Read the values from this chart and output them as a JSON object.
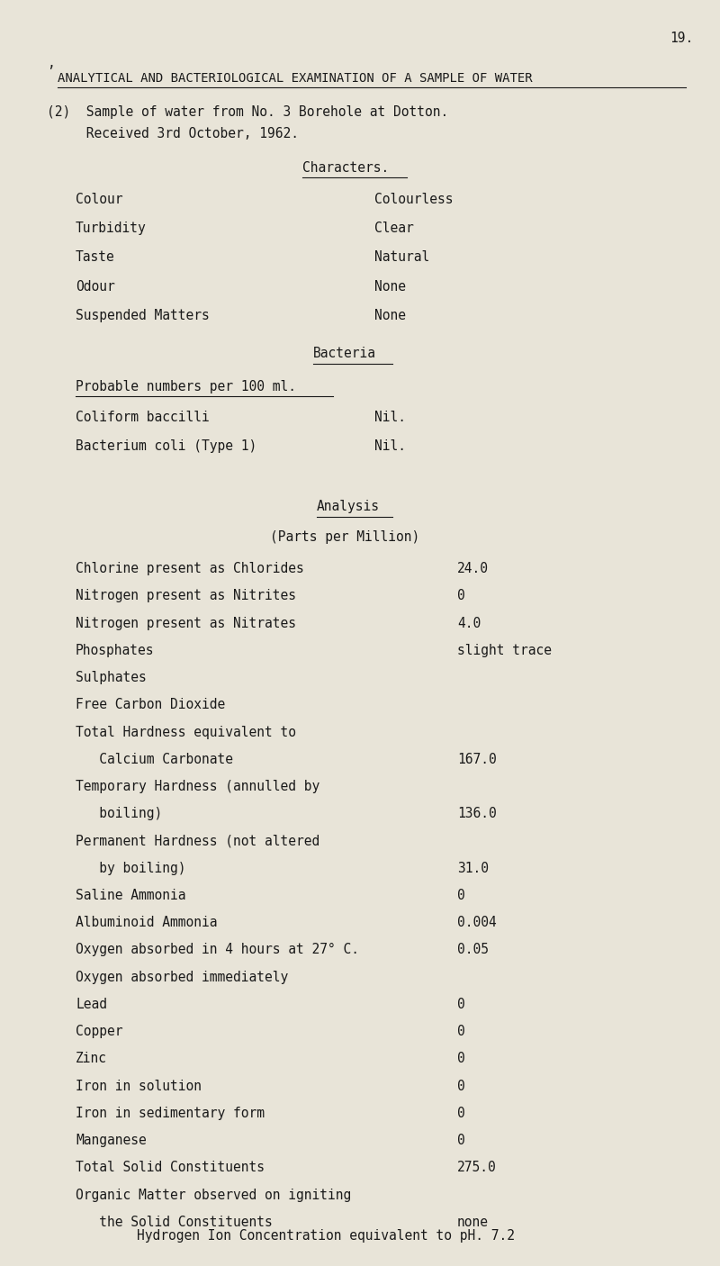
{
  "bg_color": "#e8e4d8",
  "text_color": "#1a1a1a",
  "page_number": "19.",
  "title": "ANALYTICAL AND BACTERIOLOGICAL EXAMINATION OF A SAMPLE OF WATER",
  "sample_line1": "(2)  Sample of water from No. 3 Borehole at Dotton.",
  "sample_line2": "     Received 3rd October, 1962.",
  "section_characters": "Characters.",
  "char_labels": [
    "Colour",
    "Turbidity",
    "Taste",
    "Odour",
    "Suspended Matters"
  ],
  "char_values": [
    "Colourless",
    "Clear",
    "Natural",
    "None",
    "None"
  ],
  "section_bacteria": "Bacteria",
  "bacteria_sublabel": "Probable numbers per 100 ml.",
  "bacteria_labels": [
    "Coliform baccilli",
    "Bacterium coli (Type 1)"
  ],
  "bacteria_values": [
    "Nil.",
    "Nil."
  ],
  "section_analysis": "Analysis",
  "analysis_sub": "(Parts per Million)",
  "analysis_rows": [
    [
      "Chlorine present as Chlorides",
      "24.0"
    ],
    [
      "Nitrogen present as Nitrites",
      "0"
    ],
    [
      "Nitrogen present as Nitrates",
      "4.0"
    ],
    [
      "Phosphates",
      "slight trace"
    ],
    [
      "Sulphates",
      ""
    ],
    [
      "Free Carbon Dioxide",
      ""
    ],
    [
      "Total Hardness equivalent to",
      ""
    ],
    [
      "   Calcium Carbonate",
      "167.0"
    ],
    [
      "Temporary Hardness (annulled by",
      ""
    ],
    [
      "   boiling)",
      "136.0"
    ],
    [
      "Permanent Hardness (not altered",
      ""
    ],
    [
      "   by boiling)",
      "31.0"
    ],
    [
      "Saline Ammonia",
      "0"
    ],
    [
      "Albuminoid Ammonia",
      "0.004"
    ],
    [
      "Oxygen absorbed in 4 hours at 27° C.",
      "0.05"
    ],
    [
      "Oxygen absorbed immediately",
      ""
    ],
    [
      "Lead",
      "0"
    ],
    [
      "Copper",
      "0"
    ],
    [
      "Zinc",
      "0"
    ],
    [
      "Iron in solution",
      "0"
    ],
    [
      "Iron in sedimentary form",
      "0"
    ],
    [
      "Manganese",
      "0"
    ],
    [
      "Total Solid Constituents",
      "275.0"
    ],
    [
      "Organic Matter observed on igniting",
      ""
    ],
    [
      "   the Solid Constituents",
      "none"
    ]
  ],
  "footer": "Hydrogen Ion Concentration equivalent to pH. 7.2",
  "font_size": 10.5,
  "title_font_size": 10.0,
  "mono_font": "DejaVu Sans Mono"
}
